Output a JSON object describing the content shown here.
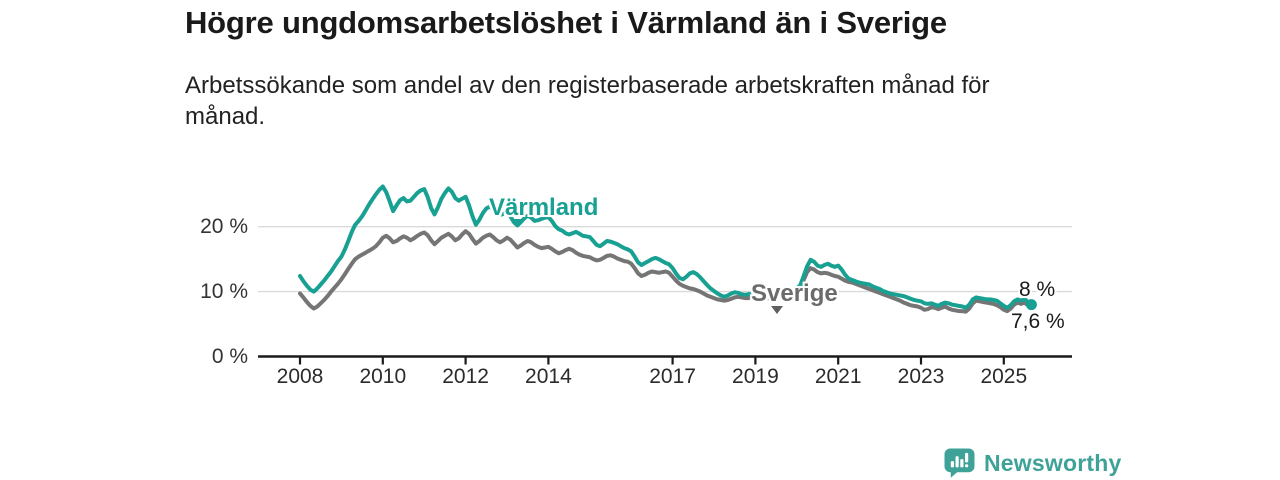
{
  "header": {
    "title": "Högre ungdomsarbetslöshet i Värmland än i Sverige",
    "subtitle": "Arbetssökande som andel av den registerbaserade arbetskraften månad för månad."
  },
  "chart_data": {
    "type": "line",
    "unit": "%",
    "x_start": {
      "year": 2008,
      "month": 1
    },
    "x_end": {
      "year": 2025,
      "month": 9
    },
    "x_tick_years": [
      2008,
      2010,
      2012,
      2014,
      2017,
      2019,
      2021,
      2023,
      2025
    ],
    "y_ticks": [
      {
        "value": 0,
        "label": "0 %"
      },
      {
        "value": 10,
        "label": "10 %"
      },
      {
        "value": 20,
        "label": "20 %"
      }
    ],
    "ylim": [
      0,
      27.5
    ],
    "grid": "horizontal",
    "legend_position": "inline-labels",
    "colors": {
      "varmland": "#18A092",
      "sverige": "#757575",
      "grid": "#dadada",
      "axis": "#1a1a1a"
    },
    "series": [
      {
        "name": "Värmland",
        "color": "#18A092",
        "last_value_label": "8 %",
        "values": [
          12.4,
          11.6,
          10.9,
          10.3,
          10.0,
          10.5,
          11.1,
          11.7,
          12.4,
          13.1,
          13.9,
          14.7,
          15.4,
          16.5,
          17.8,
          19.2,
          20.3,
          20.9,
          21.6,
          22.5,
          23.4,
          24.2,
          25.0,
          25.7,
          26.2,
          25.3,
          23.9,
          22.4,
          23.3,
          24.1,
          24.4,
          23.9,
          24.0,
          24.6,
          25.2,
          25.6,
          25.8,
          24.6,
          22.9,
          21.9,
          23.0,
          24.3,
          25.2,
          25.9,
          25.4,
          24.4,
          24.0,
          24.3,
          24.6,
          23.3,
          21.6,
          20.3,
          21.1,
          22.1,
          22.8,
          23.1,
          22.7,
          22.1,
          21.8,
          22.0,
          22.2,
          21.6,
          20.7,
          20.2,
          20.7,
          21.3,
          21.7,
          21.4,
          20.9,
          21.0,
          21.2,
          21.4,
          21.5,
          20.9,
          20.1,
          19.6,
          19.4,
          19.0,
          18.8,
          19.0,
          19.2,
          18.9,
          18.6,
          18.5,
          18.4,
          17.8,
          17.2,
          17.0,
          17.4,
          17.8,
          17.7,
          17.5,
          17.3,
          17.0,
          16.7,
          16.5,
          16.2,
          15.4,
          14.5,
          14.1,
          14.4,
          14.7,
          15.0,
          15.2,
          15.0,
          14.7,
          14.4,
          14.2,
          13.6,
          12.8,
          12.1,
          11.9,
          12.3,
          12.8,
          13.0,
          12.7,
          12.2,
          11.6,
          11.0,
          10.5,
          10.1,
          9.7,
          9.4,
          9.2,
          9.4,
          9.7,
          9.9,
          9.8,
          9.6,
          9.5,
          9.6,
          9.7,
          9.8,
          9.6,
          9.4,
          9.3,
          9.5,
          9.7,
          9.9,
          10.0,
          10.0,
          10.1,
          10.2,
          10.3,
          10.5,
          11.0,
          12.4,
          13.9,
          14.9,
          14.6,
          14.0,
          13.8,
          14.1,
          14.3,
          14.0,
          13.8,
          14.0,
          13.4,
          12.6,
          12.0,
          11.8,
          11.6,
          11.4,
          11.3,
          11.2,
          11.1,
          10.8,
          10.6,
          10.4,
          10.1,
          9.9,
          9.7,
          9.6,
          9.5,
          9.4,
          9.3,
          9.1,
          8.9,
          8.7,
          8.6,
          8.5,
          8.2,
          8.1,
          8.2,
          8.0,
          7.8,
          8.1,
          8.3,
          8.2,
          8.0,
          7.9,
          7.8,
          7.7,
          7.5,
          8.0,
          8.8,
          9.1,
          9.0,
          8.9,
          8.8,
          8.8,
          8.7,
          8.6,
          8.2,
          7.8,
          7.5,
          7.9,
          8.5,
          8.8,
          8.6,
          8.9,
          8.4,
          8.0
        ]
      },
      {
        "name": "Sverige",
        "color": "#757575",
        "last_value_label": "7,6 %",
        "values": [
          9.7,
          9.1,
          8.4,
          7.8,
          7.4,
          7.7,
          8.2,
          8.7,
          9.3,
          10.0,
          10.6,
          11.2,
          11.9,
          12.7,
          13.5,
          14.3,
          15.0,
          15.4,
          15.7,
          16.0,
          16.3,
          16.6,
          17.0,
          17.6,
          18.3,
          18.6,
          18.2,
          17.6,
          17.8,
          18.2,
          18.5,
          18.3,
          17.9,
          18.2,
          18.6,
          18.9,
          19.1,
          18.7,
          17.9,
          17.3,
          17.8,
          18.3,
          18.6,
          18.9,
          18.5,
          17.9,
          18.2,
          18.8,
          19.3,
          18.9,
          18.1,
          17.4,
          17.8,
          18.3,
          18.6,
          18.8,
          18.4,
          17.9,
          17.6,
          17.9,
          18.3,
          18.0,
          17.4,
          16.8,
          17.1,
          17.5,
          17.8,
          17.6,
          17.2,
          16.9,
          16.7,
          16.8,
          16.9,
          16.6,
          16.2,
          15.9,
          16.1,
          16.4,
          16.6,
          16.4,
          16.0,
          15.7,
          15.5,
          15.4,
          15.3,
          15.0,
          14.8,
          14.9,
          15.2,
          15.5,
          15.6,
          15.4,
          15.1,
          14.9,
          14.7,
          14.6,
          14.3,
          13.6,
          12.8,
          12.4,
          12.6,
          12.9,
          13.1,
          13.0,
          12.9,
          13.0,
          13.1,
          12.9,
          12.3,
          11.7,
          11.2,
          10.9,
          10.7,
          10.5,
          10.4,
          10.2,
          10.0,
          9.7,
          9.4,
          9.2,
          9.0,
          8.8,
          8.7,
          8.6,
          8.7,
          8.9,
          9.1,
          9.2,
          9.1,
          9.0,
          9.0,
          9.1,
          9.2,
          9.1,
          9.0,
          8.9,
          9.0,
          9.2,
          9.4,
          9.5,
          9.5,
          9.6,
          9.7,
          9.8,
          10.0,
          10.5,
          11.8,
          13.0,
          13.6,
          13.4,
          13.0,
          12.8,
          12.9,
          12.8,
          12.6,
          12.4,
          12.3,
          12.0,
          11.7,
          11.5,
          11.4,
          11.2,
          11.0,
          10.8,
          10.6,
          10.4,
          10.2,
          10.0,
          9.8,
          9.6,
          9.4,
          9.2,
          9.0,
          8.8,
          8.6,
          8.3,
          8.1,
          7.9,
          7.8,
          7.7,
          7.5,
          7.2,
          7.3,
          7.6,
          7.5,
          7.3,
          7.5,
          7.7,
          7.4,
          7.2,
          7.1,
          7.0,
          7.0,
          6.9,
          7.4,
          8.2,
          8.6,
          8.5,
          8.4,
          8.3,
          8.2,
          8.1,
          7.9,
          7.6,
          7.2,
          7.0,
          7.4,
          8.0,
          8.3,
          8.1,
          8.3,
          7.9,
          7.6
        ]
      }
    ],
    "inline_labels": [
      {
        "text": "Värmland",
        "series": "Värmland"
      },
      {
        "text": "Sverige",
        "series": "Sverige"
      }
    ],
    "end_labels": {
      "top": "8 %",
      "bottom": "7,6 %"
    }
  },
  "footer": {
    "brand": "Newsworthy"
  }
}
